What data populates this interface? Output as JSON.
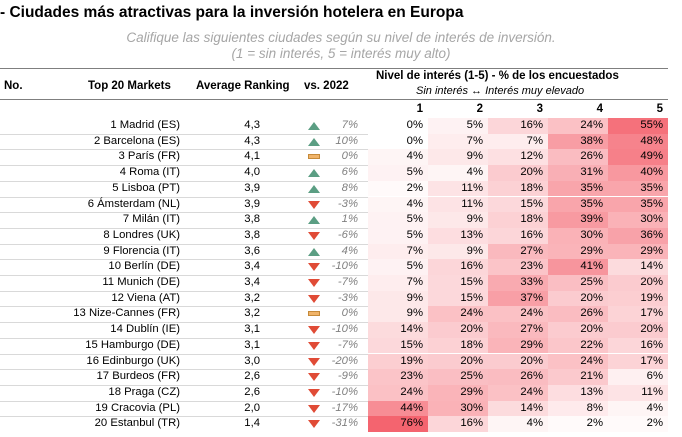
{
  "title": "- Ciudades más atractivas para la inversión hotelera en Europa",
  "subtitle_line1": "Califique las siguientes ciudades según su nivel de interés de inversión.",
  "subtitle_line2": "(1 = sin interés, 5 = interés muy alto)",
  "headers": {
    "no": "No.",
    "markets": "Top 20 Markets",
    "avg": "Average Ranking",
    "vs": "vs. 2022",
    "interest": "Nivel de interés (1-5) - % de los encuestados",
    "interest_sub": "Sin interés ↔ Interés muy elevado",
    "levels": [
      "1",
      "2",
      "3",
      "4",
      "5"
    ]
  },
  "colors": {
    "up": "#5b9e83",
    "down": "#e04b36",
    "flat": "#f0b46a",
    "heat_max": "#f4646f"
  },
  "rows": [
    {
      "market": "1 Madrid (ES)",
      "avg": "4,3",
      "trend": "up",
      "vs": "7%",
      "p": [
        "0%",
        "5%",
        "16%",
        "24%",
        "55%"
      ]
    },
    {
      "market": "2 Barcelona (ES)",
      "avg": "4,3",
      "trend": "up",
      "vs": "10%",
      "p": [
        "0%",
        "7%",
        "7%",
        "38%",
        "48%"
      ]
    },
    {
      "market": "3 París (FR)",
      "avg": "4,1",
      "trend": "flat",
      "vs": "0%",
      "p": [
        "4%",
        "9%",
        "12%",
        "26%",
        "49%"
      ]
    },
    {
      "market": "4 Roma (IT)",
      "avg": "4,0",
      "trend": "up",
      "vs": "6%",
      "p": [
        "5%",
        "4%",
        "20%",
        "31%",
        "40%"
      ]
    },
    {
      "market": "5 Lisboa (PT)",
      "avg": "3,9",
      "trend": "up",
      "vs": "8%",
      "p": [
        "2%",
        "11%",
        "18%",
        "35%",
        "35%"
      ]
    },
    {
      "market": "6 Ámsterdam (NL)",
      "avg": "3,9",
      "trend": "down",
      "vs": "-3%",
      "p": [
        "4%",
        "11%",
        "15%",
        "35%",
        "35%"
      ]
    },
    {
      "market": "7 Milán (IT)",
      "avg": "3,8",
      "trend": "up",
      "vs": "1%",
      "p": [
        "5%",
        "9%",
        "18%",
        "39%",
        "30%"
      ]
    },
    {
      "market": "8 Londres (UK)",
      "avg": "3,8",
      "trend": "down",
      "vs": "-6%",
      "p": [
        "5%",
        "13%",
        "16%",
        "30%",
        "36%"
      ]
    },
    {
      "market": "9 Florencia (IT)",
      "avg": "3,6",
      "trend": "up",
      "vs": "4%",
      "p": [
        "7%",
        "9%",
        "27%",
        "29%",
        "29%"
      ]
    },
    {
      "market": "10 Berlín (DE)",
      "avg": "3,4",
      "trend": "down",
      "vs": "-10%",
      "p": [
        "5%",
        "16%",
        "23%",
        "41%",
        "14%"
      ]
    },
    {
      "market": "11 Munich (DE)",
      "avg": "3,4",
      "trend": "down",
      "vs": "-7%",
      "p": [
        "7%",
        "15%",
        "33%",
        "25%",
        "20%"
      ]
    },
    {
      "market": "12 Viena (AT)",
      "avg": "3,2",
      "trend": "down",
      "vs": "-3%",
      "p": [
        "9%",
        "15%",
        "37%",
        "20%",
        "19%"
      ]
    },
    {
      "market": "13 Nize-Cannes (FR)",
      "avg": "3,2",
      "trend": "flat",
      "vs": "0%",
      "p": [
        "9%",
        "24%",
        "24%",
        "26%",
        "17%"
      ]
    },
    {
      "market": "14 Dublín (IE)",
      "avg": "3,1",
      "trend": "down",
      "vs": "-10%",
      "p": [
        "14%",
        "20%",
        "27%",
        "20%",
        "20%"
      ]
    },
    {
      "market": "15 Hamburgo (DE)",
      "avg": "3,1",
      "trend": "down",
      "vs": "-7%",
      "p": [
        "15%",
        "18%",
        "29%",
        "22%",
        "16%"
      ]
    },
    {
      "market": "16 Edinburgo (UK)",
      "avg": "3,0",
      "trend": "down",
      "vs": "-20%",
      "p": [
        "19%",
        "20%",
        "20%",
        "24%",
        "17%"
      ]
    },
    {
      "market": "17 Burdeos (FR)",
      "avg": "2,6",
      "trend": "down",
      "vs": "-9%",
      "p": [
        "23%",
        "25%",
        "26%",
        "21%",
        "6%"
      ]
    },
    {
      "market": "18 Praga (CZ)",
      "avg": "2,6",
      "trend": "down",
      "vs": "-10%",
      "p": [
        "24%",
        "29%",
        "24%",
        "13%",
        "11%"
      ]
    },
    {
      "market": "19 Cracovia (PL)",
      "avg": "2,0",
      "trend": "down",
      "vs": "-17%",
      "p": [
        "44%",
        "30%",
        "14%",
        "8%",
        "4%"
      ]
    },
    {
      "market": "20 Estanbul (TR)",
      "avg": "1,4",
      "trend": "down",
      "vs": "-31%",
      "p": [
        "76%",
        "16%",
        "4%",
        "2%",
        "2%"
      ]
    }
  ]
}
